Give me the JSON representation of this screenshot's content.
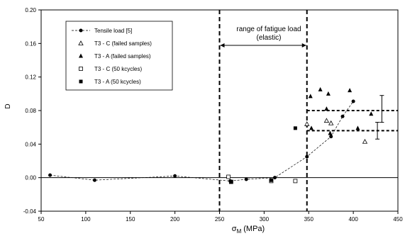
{
  "chart_data": {
    "type": "scatter",
    "xlabel": "σ",
    "xlabel_sub": "M",
    "xlabel_unit": "(MPa)",
    "ylabel": "D",
    "xlim": [
      50,
      450
    ],
    "ylim": [
      -0.04,
      0.2
    ],
    "x_ticks": [
      50,
      100,
      150,
      200,
      250,
      300,
      350,
      400,
      450
    ],
    "y_ticks": [
      -0.04,
      0.0,
      0.04,
      0.08,
      0.12,
      0.16,
      0.2
    ],
    "y_tick_labels": [
      "-0.04",
      "0.00",
      "0.04",
      "0.08",
      "0.12",
      "0.16",
      "0.20"
    ],
    "grid": false,
    "legend_position": "top-left",
    "annotation": {
      "line1": "range of fatigue load",
      "line2": "(elastic)",
      "x_from": 250,
      "x_to": 348
    },
    "vertical_lines": [
      250,
      348
    ],
    "horizontal_lines": [
      {
        "y": 0.08,
        "x_from": 348,
        "x_to": 450
      },
      {
        "y": 0.056,
        "x_from": 348,
        "x_to": 450
      }
    ],
    "error_bars": [
      {
        "x": 432,
        "center": 0.082,
        "low": 0.066,
        "high": 0.098
      },
      {
        "x": 427,
        "center": 0.056,
        "low": 0.046,
        "high": 0.066
      }
    ],
    "series": [
      {
        "name": "Tensile load  [5]",
        "marker": "circle",
        "line": "dashed",
        "x": [
          60,
          110,
          200,
          262,
          280,
          312,
          348,
          375,
          388,
          400
        ],
        "y": [
          0.003,
          -0.003,
          0.002,
          -0.004,
          -0.002,
          0.0,
          0.025,
          0.049,
          0.073,
          0.091
        ]
      },
      {
        "name": "T3 - C (failed samples)",
        "marker": "triangle-open",
        "x": [
          348,
          370,
          375,
          413
        ],
        "y": [
          0.064,
          0.068,
          0.065,
          0.043
        ]
      },
      {
        "name": "T3 - A (failed samples)",
        "marker": "triangle-filled",
        "x": [
          352,
          353,
          363,
          370,
          372,
          374,
          396,
          405,
          420
        ],
        "y": [
          0.097,
          0.059,
          0.105,
          0.082,
          0.1,
          0.053,
          0.104,
          0.059,
          0.076
        ]
      },
      {
        "name": "T3 - C (50 kcycles)",
        "marker": "square-open",
        "x": [
          260,
          263,
          308,
          335
        ],
        "y": [
          0.001,
          -0.005,
          -0.004,
          -0.004
        ]
      },
      {
        "name": "T3 - A (50 kcycles)",
        "marker": "square-filled",
        "x": [
          263,
          308,
          335
        ],
        "y": [
          -0.005,
          -0.003,
          0.059
        ]
      }
    ]
  }
}
